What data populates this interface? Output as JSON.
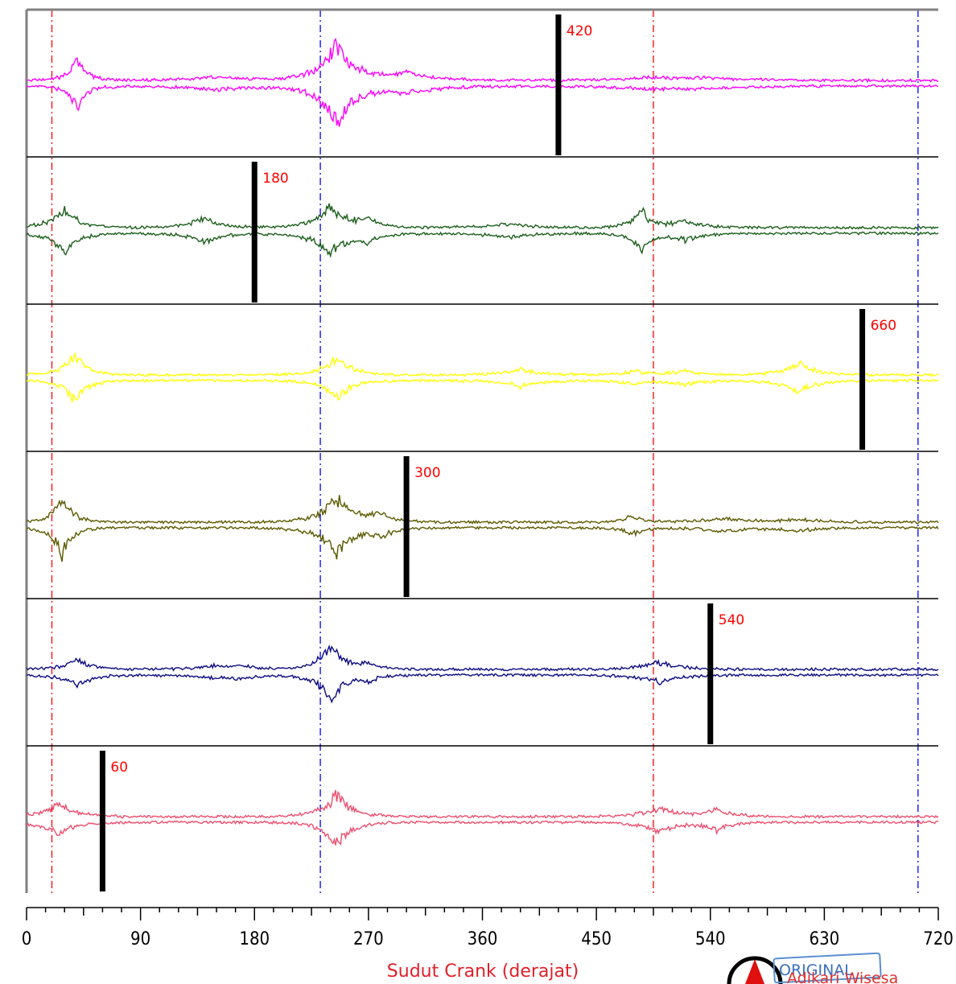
{
  "chart_data": {
    "type": "line",
    "xlabel": "Sudut Crank (derajat)",
    "xlim": [
      0,
      720
    ],
    "xticks": [
      0,
      90,
      180,
      270,
      360,
      450,
      540,
      630,
      720
    ],
    "reference_lines": [
      {
        "x": 20,
        "color": "#ff0000",
        "style": "dash-dot"
      },
      {
        "x": 232,
        "color": "#0000ff",
        "style": "dash-dot"
      },
      {
        "x": 495,
        "color": "#ff0000",
        "style": "dash-dot"
      },
      {
        "x": 704,
        "color": "#0000ff",
        "style": "dash-dot"
      }
    ],
    "series": [
      {
        "color": "#ff00ff",
        "marker": 420,
        "bursts": [
          [
            40,
            1.0,
            8
          ],
          [
            245,
            1.8,
            14
          ],
          [
            150,
            0.18,
            30
          ],
          [
            300,
            0.35,
            25
          ],
          [
            495,
            0.15,
            30
          ],
          [
            540,
            0.12,
            30
          ]
        ]
      },
      {
        "color": "#1b5e1b",
        "marker": 180,
        "bursts": [
          [
            30,
            0.9,
            12
          ],
          [
            140,
            0.45,
            14
          ],
          [
            240,
            1.0,
            14
          ],
          [
            270,
            0.35,
            12
          ],
          [
            485,
            0.9,
            8
          ],
          [
            520,
            0.35,
            15
          ],
          [
            380,
            0.2,
            20
          ]
        ]
      },
      {
        "color": "#ffff00",
        "marker": 660,
        "bursts": [
          [
            38,
            1.0,
            10
          ],
          [
            245,
            0.9,
            12
          ],
          [
            390,
            0.3,
            15
          ],
          [
            480,
            0.2,
            10
          ],
          [
            520,
            0.2,
            15
          ],
          [
            610,
            0.6,
            14
          ]
        ]
      },
      {
        "color": "#5c5a00",
        "marker": 300,
        "bursts": [
          [
            28,
            1.3,
            8
          ],
          [
            245,
            1.2,
            14
          ],
          [
            280,
            0.35,
            12
          ],
          [
            478,
            0.35,
            8
          ],
          [
            550,
            0.2,
            20
          ],
          [
            610,
            0.15,
            20
          ]
        ]
      },
      {
        "color": "#0b0b80",
        "marker": 540,
        "bursts": [
          [
            40,
            0.5,
            12
          ],
          [
            240,
            1.3,
            10
          ],
          [
            270,
            0.3,
            10
          ],
          [
            150,
            0.15,
            20
          ],
          [
            170,
            0.15,
            15
          ],
          [
            500,
            0.35,
            18
          ]
        ]
      },
      {
        "color": "#ee4d6d",
        "marker": 60,
        "bursts": [
          [
            25,
            0.6,
            14
          ],
          [
            245,
            1.1,
            12
          ],
          [
            500,
            0.45,
            15
          ],
          [
            545,
            0.4,
            12
          ]
        ]
      }
    ]
  },
  "watermark": {
    "stamp_text": "ORIGINAL",
    "author_text": "Adikari Wisesa"
  }
}
